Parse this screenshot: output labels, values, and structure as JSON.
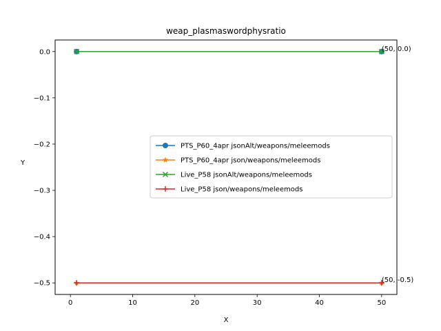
{
  "chart_data": {
    "type": "line",
    "title": "weap_plasmaswordphysratio",
    "xlabel": "X",
    "ylabel": "Y",
    "xlim": [
      -2.45,
      52.45
    ],
    "ylim": [
      -0.525,
      0.025
    ],
    "xticks": [
      0,
      10,
      20,
      30,
      40,
      50
    ],
    "yticks": [
      0.0,
      -0.1,
      -0.2,
      -0.3,
      -0.4,
      -0.5
    ],
    "ytick_labels": [
      "0.0",
      "−0.1",
      "−0.2",
      "−0.3",
      "−0.4",
      "−0.5"
    ],
    "legend_position": "center-right",
    "series": [
      {
        "name": "PTS_P60_4apr jsonAlt/weapons/meleemods",
        "color": "#1f77b4",
        "marker": "circle",
        "x": [
          1,
          50
        ],
        "y": [
          0.0,
          0.0
        ]
      },
      {
        "name": "PTS_P60_4apr json/weapons/meleemods",
        "color": "#ff7f0e",
        "marker": "star",
        "x": [
          1,
          50
        ],
        "y": [
          -0.5,
          -0.5
        ]
      },
      {
        "name": "Live_P58 jsonAlt/weapons/meleemods",
        "color": "#2ca02c",
        "marker": "x",
        "x": [
          1,
          50
        ],
        "y": [
          0.0,
          0.0
        ]
      },
      {
        "name": "Live_P58 json/weapons/meleemods",
        "color": "#d62728",
        "marker": "plus",
        "x": [
          1,
          50
        ],
        "y": [
          -0.5,
          -0.5
        ]
      }
    ],
    "annotations": [
      {
        "text": "(50, 0.0)",
        "x": 50,
        "y": 0.0
      },
      {
        "text": "(50, -0.5)",
        "x": 50,
        "y": -0.5
      }
    ]
  }
}
